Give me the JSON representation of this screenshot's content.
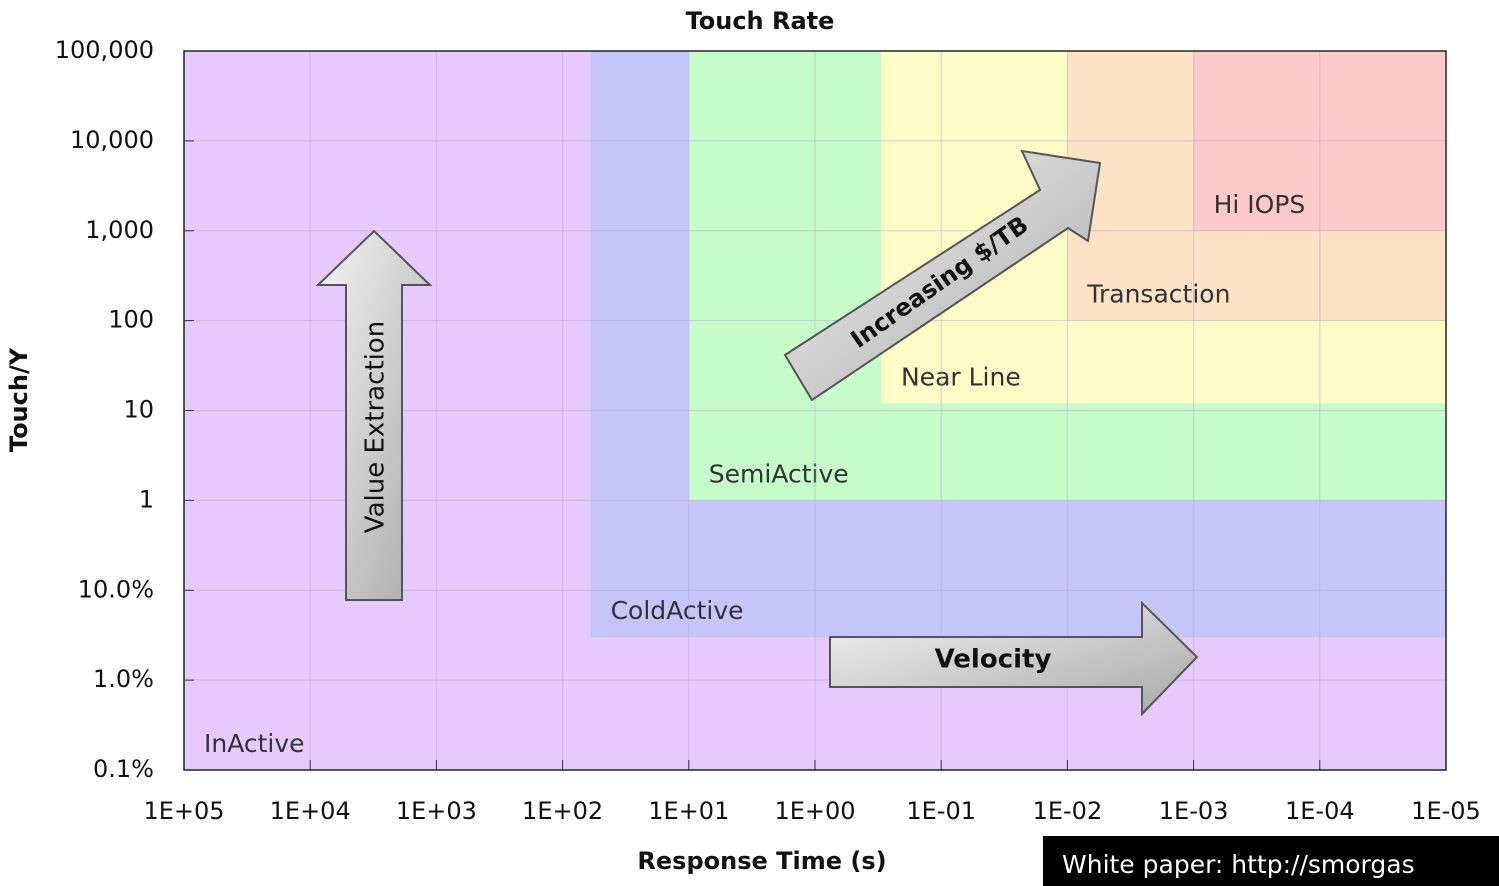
{
  "chart_data": {
    "type": "region",
    "title": "Touch Rate",
    "x_label": "Response Time (s)",
    "y_label": "Touch/Y",
    "xlim": [
      100000,
      1e-05
    ],
    "ylim": [
      0.001,
      100000
    ],
    "xscale": "log",
    "yscale": "log",
    "grid": true,
    "xticks": [
      {
        "value": 100000,
        "label": "1E+05"
      },
      {
        "value": 10000,
        "label": "1E+04"
      },
      {
        "value": 1000,
        "label": "1E+03"
      },
      {
        "value": 100,
        "label": "1E+02"
      },
      {
        "value": 10,
        "label": "1E+01"
      },
      {
        "value": 1,
        "label": "1E+00"
      },
      {
        "value": 0.1,
        "label": "1E-01"
      },
      {
        "value": 0.01,
        "label": "1E-02"
      },
      {
        "value": 0.001,
        "label": "1E-03"
      },
      {
        "value": 0.0001,
        "label": "1E-04"
      },
      {
        "value": 1e-05,
        "label": "1E-05"
      }
    ],
    "yticks": [
      {
        "value": 0.001,
        "label": "0.1%"
      },
      {
        "value": 0.01,
        "label": "1.0%"
      },
      {
        "value": 0.1,
        "label": "10.0%"
      },
      1,
      10,
      100,
      {
        "value": 1000,
        "label": "1,000"
      },
      {
        "value": 10000,
        "label": "10,000"
      },
      {
        "value": 100000,
        "label": "100,000"
      }
    ],
    "regions": [
      {
        "name": "InActive",
        "color": "#e6c9fd",
        "xmin": 100000,
        "ymin": 0.001
      },
      {
        "name": "ColdActive",
        "color": "#c5c5fc",
        "xmin": 60,
        "ymin": 0.03
      },
      {
        "name": "SemiActive",
        "color": "#c6fcca",
        "xmin": 10,
        "ymin": 1
      },
      {
        "name": "Near Line",
        "color": "#fefcc6",
        "xmin": 0.3,
        "ymin": 12
      },
      {
        "name": "Transaction",
        "color": "#fde2c6",
        "xmin": 0.01,
        "ymin": 100
      },
      {
        "name": "Hi IOPS",
        "color": "#fccaca",
        "xmin": 0.001,
        "ymin": 1000
      }
    ],
    "annotations": [
      "Value Extraction",
      "Increasing $/TB",
      "Velocity"
    ],
    "footer": "White paper: http://smorgas"
  }
}
